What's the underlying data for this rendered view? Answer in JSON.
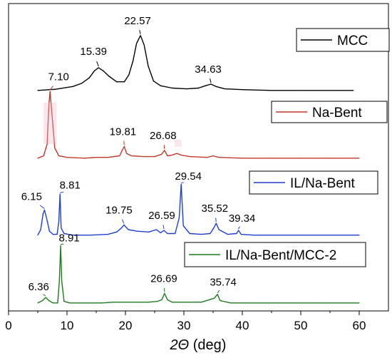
{
  "chart_data": {
    "type": "line",
    "xlabel_var": "2Θ",
    "xlabel_unit": "(deg)",
    "ylabel": "",
    "xlim": [
      0,
      65
    ],
    "xticks": [
      0,
      10,
      20,
      30,
      40,
      50,
      60
    ],
    "grid": false,
    "legend": "per-trace boxes, right side",
    "series": [
      {
        "name": "MCC",
        "color": "#000000",
        "x": [
          5,
          8,
          11,
          12.5,
          13.8,
          14.7,
          15.39,
          16.2,
          17.2,
          18.5,
          19.8,
          20.6,
          21.3,
          21.9,
          22.57,
          23.2,
          23.9,
          24.8,
          26,
          28,
          30.5,
          32.5,
          33.7,
          34.63,
          35.5,
          37,
          40,
          45,
          50,
          55,
          59
        ],
        "y": [
          0.02,
          0.035,
          0.07,
          0.11,
          0.18,
          0.27,
          0.31,
          0.27,
          0.2,
          0.13,
          0.13,
          0.22,
          0.4,
          0.62,
          0.72,
          0.6,
          0.33,
          0.14,
          0.08,
          0.05,
          0.04,
          0.05,
          0.08,
          0.1,
          0.07,
          0.04,
          0.03,
          0.02,
          0.02,
          0.02,
          0.02
        ]
      },
      {
        "name": "Na-Bent",
        "color": "#c0392b",
        "x": [
          5,
          6,
          6.6,
          6.9,
          7.1,
          7.4,
          7.9,
          8.6,
          10,
          13,
          15,
          17,
          19,
          19.5,
          19.81,
          20.2,
          21,
          23,
          25,
          26.2,
          26.68,
          27.2,
          28,
          28.8,
          29.5,
          31,
          34,
          35,
          36,
          40,
          45,
          50,
          55,
          60
        ],
        "y": [
          0.02,
          0.05,
          0.2,
          0.7,
          0.87,
          0.6,
          0.15,
          0.05,
          0.03,
          0.02,
          0.03,
          0.03,
          0.05,
          0.13,
          0.17,
          0.08,
          0.05,
          0.04,
          0.04,
          0.07,
          0.12,
          0.05,
          0.06,
          0.08,
          0.06,
          0.04,
          0.03,
          0.05,
          0.03,
          0.02,
          0.02,
          0.02,
          0.02,
          0.02
        ]
      },
      {
        "name": "IL/Na-Bent",
        "color": "#1f3fd1",
        "x": [
          5,
          5.5,
          5.9,
          6.15,
          6.5,
          7,
          7.6,
          8.3,
          8.6,
          8.81,
          9.0,
          9.5,
          11,
          14,
          17,
          18.5,
          19.3,
          19.75,
          20.5,
          22,
          24,
          25.3,
          26,
          26.59,
          27.2,
          28.5,
          29.2,
          29.54,
          29.9,
          31,
          33,
          34.5,
          35.1,
          35.52,
          36,
          37.5,
          39.0,
          39.34,
          39.8,
          42,
          45,
          50,
          55,
          60
        ],
        "y": [
          0.03,
          0.1,
          0.3,
          0.35,
          0.25,
          0.08,
          0.04,
          0.04,
          0.2,
          0.55,
          0.12,
          0.05,
          0.03,
          0.03,
          0.04,
          0.07,
          0.12,
          0.16,
          0.1,
          0.08,
          0.07,
          0.1,
          0.06,
          0.09,
          0.05,
          0.05,
          0.25,
          0.68,
          0.15,
          0.05,
          0.04,
          0.05,
          0.12,
          0.18,
          0.1,
          0.04,
          0.05,
          0.09,
          0.04,
          0.03,
          0.03,
          0.03,
          0.03,
          0.03
        ]
      },
      {
        "name": "IL/Na-Bent/MCC-2",
        "color": "#1e7a1e",
        "x": [
          5,
          5.8,
          6.36,
          6.9,
          7.6,
          8.4,
          8.7,
          8.91,
          9.1,
          9.5,
          10.5,
          13,
          16,
          18,
          20,
          22,
          24,
          25.5,
          26.2,
          26.69,
          27.2,
          28,
          30,
          33,
          35.2,
          35.74,
          36.2,
          38,
          42,
          45,
          50,
          55,
          60
        ],
        "y": [
          0.02,
          0.05,
          0.09,
          0.05,
          0.02,
          0.02,
          0.3,
          0.75,
          0.3,
          0.04,
          0.02,
          0.02,
          0.02,
          0.03,
          0.03,
          0.03,
          0.03,
          0.04,
          0.06,
          0.14,
          0.06,
          0.03,
          0.03,
          0.03,
          0.08,
          0.13,
          0.05,
          0.02,
          0.02,
          0.02,
          0.02,
          0.02,
          0.02
        ]
      }
    ],
    "annotations": [
      {
        "series": 0,
        "text": "15.39",
        "x": 15.39
      },
      {
        "series": 0,
        "text": "22.57",
        "x": 22.57
      },
      {
        "series": 0,
        "text": "34.63",
        "x": 34.63
      },
      {
        "series": 1,
        "text": "7.10",
        "x": 7.1
      },
      {
        "series": 1,
        "text": "19.81",
        "x": 19.81
      },
      {
        "series": 1,
        "text": "26.68",
        "x": 26.68
      },
      {
        "series": 2,
        "text": "6.15",
        "x": 6.15
      },
      {
        "series": 2,
        "text": "8.81",
        "x": 8.81
      },
      {
        "series": 2,
        "text": "19.75",
        "x": 19.75
      },
      {
        "series": 2,
        "text": "26.59",
        "x": 26.59
      },
      {
        "series": 2,
        "text": "29.54",
        "x": 29.54
      },
      {
        "series": 2,
        "text": "35.52",
        "x": 35.52
      },
      {
        "series": 2,
        "text": "39.34",
        "x": 39.34
      },
      {
        "series": 3,
        "text": "6.36",
        "x": 6.36
      },
      {
        "series": 3,
        "text": "8.91",
        "x": 8.91
      },
      {
        "series": 3,
        "text": "26.69",
        "x": 26.69
      },
      {
        "series": 3,
        "text": "35.74",
        "x": 35.74
      }
    ]
  }
}
